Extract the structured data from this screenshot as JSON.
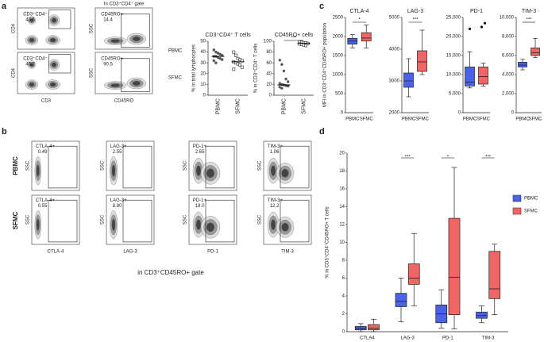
{
  "panel_a": {
    "letter": "a",
    "row_labels": [
      "PBMC",
      "SFMC"
    ]
  },
  "panel_b": {
    "letter": "b",
    "row_labels": [
      "PBMC",
      "SFMC"
    ],
    "caption": "in CD3⁺CD45RO+ gate"
  },
  "panel_c": {
    "letter": "c"
  },
  "panel_d": {
    "letter": "d"
  },
  "chart_data": [
    {
      "type": "flow",
      "xlabel": "CD3",
      "ylabel": "CD4",
      "gates": [
        {
          "name": "CD3⁺CD4⁺",
          "value": 42.6
        },
        {
          "name": "CD3⁺CD4⁺",
          "value": 45.2
        }
      ]
    },
    {
      "type": "flow",
      "title": "In CD3⁺CD4⁺ gate",
      "xlabel": "CD45RO",
      "ylabel": "SSC",
      "gates": [
        {
          "name": "CD45RO+",
          "value": 14.4
        },
        {
          "name": "CD45RO+",
          "value": 90.5
        }
      ]
    },
    {
      "type": "dot",
      "title": "CD3⁺CD4⁺ T cells",
      "ylabel": "% in total lymphocytes",
      "categories": [
        "PBMC",
        "SFMC"
      ],
      "markers": [
        "circle",
        "square"
      ],
      "values": [
        [
          42,
          40,
          39,
          38,
          37,
          36,
          36,
          35,
          34,
          33,
          32,
          30
        ],
        [
          40,
          37,
          34,
          33,
          32,
          31,
          30,
          29,
          28,
          26,
          24
        ]
      ],
      "medians": [
        36,
        31
      ],
      "ylim": [
        0,
        50
      ],
      "yticks": [
        0,
        10,
        20,
        30,
        40,
        50
      ]
    },
    {
      "type": "dot",
      "title": "CD45RO+ cells",
      "ylabel": "% in CD3⁺CD4⁺ T cells",
      "categories": [
        "PBMC",
        "SFMC"
      ],
      "markers": [
        "circle",
        "square"
      ],
      "values": [
        [
          65,
          57,
          45,
          30,
          25,
          22,
          20,
          19,
          18,
          17,
          15,
          13
        ],
        [
          99,
          98,
          97,
          97,
          96,
          95,
          94,
          93,
          92
        ]
      ],
      "medians": [
        19,
        96
      ],
      "significance": "***",
      "ylim": [
        0,
        100
      ],
      "yticks": [
        0,
        20,
        40,
        60,
        80,
        100
      ]
    },
    {
      "type": "box",
      "title": "CTLA-4",
      "ylabel": "MFI in CD3⁺CD4⁺CD45RO+ population",
      "categories": [
        "PBMC",
        "SFMC"
      ],
      "colors": [
        "#4a63e6",
        "#f06565"
      ],
      "values": [
        [
          1700,
          1800,
          1880,
          1950,
          2050
        ],
        [
          1700,
          1880,
          1960,
          2100,
          2300
        ]
      ],
      "significance": "*",
      "ylim": [
        0,
        2500
      ],
      "yticks": [
        0,
        500,
        1000,
        1500,
        2000,
        2500
      ]
    },
    {
      "type": "box",
      "title": "LAG-3",
      "categories": [
        "PBMC",
        "SFMC"
      ],
      "colors": [
        "#4a63e6",
        "#f06565"
      ],
      "values": [
        [
          2500,
          2800,
          3000,
          3250,
          3700
        ],
        [
          3200,
          3300,
          3600,
          3950,
          4600
        ]
      ],
      "significance": "***",
      "ylim": [
        2000,
        5000
      ],
      "yticks": [
        2000,
        3000,
        4000,
        5000
      ]
    },
    {
      "type": "box",
      "title": "PD-1",
      "categories": [
        "PBMC",
        "SFMC"
      ],
      "colors": [
        "#4a63e6",
        "#f06565"
      ],
      "values": [
        [
          6500,
          7000,
          8000,
          12000,
          16000
        ],
        [
          7000,
          7500,
          9500,
          12000,
          13000
        ]
      ],
      "outliers": [
        [
          22000
        ],
        [
          22500,
          23500
        ]
      ],
      "ylim": [
        0,
        25000
      ],
      "yticks": [
        0,
        {
          "value": 5000,
          "label": "5,000"
        },
        {
          "value": 10000,
          "label": "10,000"
        },
        {
          "value": 15000,
          "label": "15,000"
        },
        {
          "value": 20000,
          "label": "20,000"
        },
        {
          "value": 25000,
          "label": "25,000"
        }
      ]
    },
    {
      "type": "box",
      "title": "TIM-3",
      "categories": [
        "PBMC",
        "SFMC"
      ],
      "colors": [
        "#4a63e6",
        "#f06565"
      ],
      "values": [
        [
          4500,
          4800,
          5000,
          5300,
          5600
        ],
        [
          5800,
          6000,
          6300,
          6800,
          7800
        ]
      ],
      "significance": "***",
      "ylim": [
        0,
        10000
      ],
      "yticks": [
        0,
        {
          "value": 2000,
          "label": "2,000"
        },
        {
          "value": 4000,
          "label": "4,000"
        },
        {
          "value": 6000,
          "label": "6,000"
        },
        {
          "value": 8000,
          "label": "8,000"
        },
        {
          "value": 10000,
          "label": "10,000"
        }
      ]
    },
    {
      "type": "flow",
      "xlabel": "CTLA-4",
      "ylabel": "SSC",
      "gates": [
        {
          "name": "CTLA-4+",
          "value": 0.49
        },
        {
          "name": "CTLA-4+",
          "value": 0.55
        }
      ]
    },
    {
      "type": "flow",
      "xlabel": "LAG-3",
      "ylabel": "SSC",
      "gates": [
        {
          "name": "LAG-3+",
          "value": 2.55
        },
        {
          "name": "LAG-3+",
          "value": 8.8,
          "value_label": "8.80"
        }
      ]
    },
    {
      "type": "flow",
      "xlabel": "PD-1",
      "ylabel": "SSC",
      "gates": [
        {
          "name": "PD-1+",
          "value": 2.65
        },
        {
          "name": "PD-1+",
          "value": 18,
          "value_label": "18.0"
        }
      ]
    },
    {
      "type": "flow",
      "xlabel": "TIM-3",
      "ylabel": "SSC",
      "gates": [
        {
          "name": "TIM-3+",
          "value": 1.06
        },
        {
          "name": "TIM-3+",
          "value": 12.2
        }
      ]
    },
    {
      "type": "box",
      "ylabel": "% in CD3⁺CD4⁺CD45RO+ T cells",
      "categories": [
        "CTLA4",
        "LAG-3",
        "PD-1",
        "TIM-3"
      ],
      "series": [
        {
          "name": "PBMC",
          "color": "#4a63e6",
          "values": [
            [
              0,
              0.2,
              0.4,
              0.6,
              0.9
            ],
            [
              1.1,
              2.8,
              3.4,
              4.3,
              6.0
            ],
            [
              0.4,
              1.0,
              2.0,
              3.0,
              4.7
            ],
            [
              1.0,
              1.5,
              1.8,
              2.2,
              2.9
            ]
          ]
        },
        {
          "name": "SFMC",
          "color": "#f06565",
          "values": [
            [
              0,
              0.2,
              0.4,
              0.8,
              1.4
            ],
            [
              2.9,
              5.3,
              6.0,
              7.6,
              11.0
            ],
            [
              0.3,
              1.9,
              6.1,
              12.7,
              18.4
            ],
            [
              1.9,
              3.7,
              4.8,
              9.0,
              9.8
            ]
          ]
        }
      ],
      "significance": [
        null,
        "***",
        "*",
        "***"
      ],
      "ylim": [
        0,
        20
      ],
      "yticks": [
        0,
        2,
        4,
        6,
        8,
        10,
        12,
        14,
        16,
        18,
        20
      ]
    }
  ]
}
